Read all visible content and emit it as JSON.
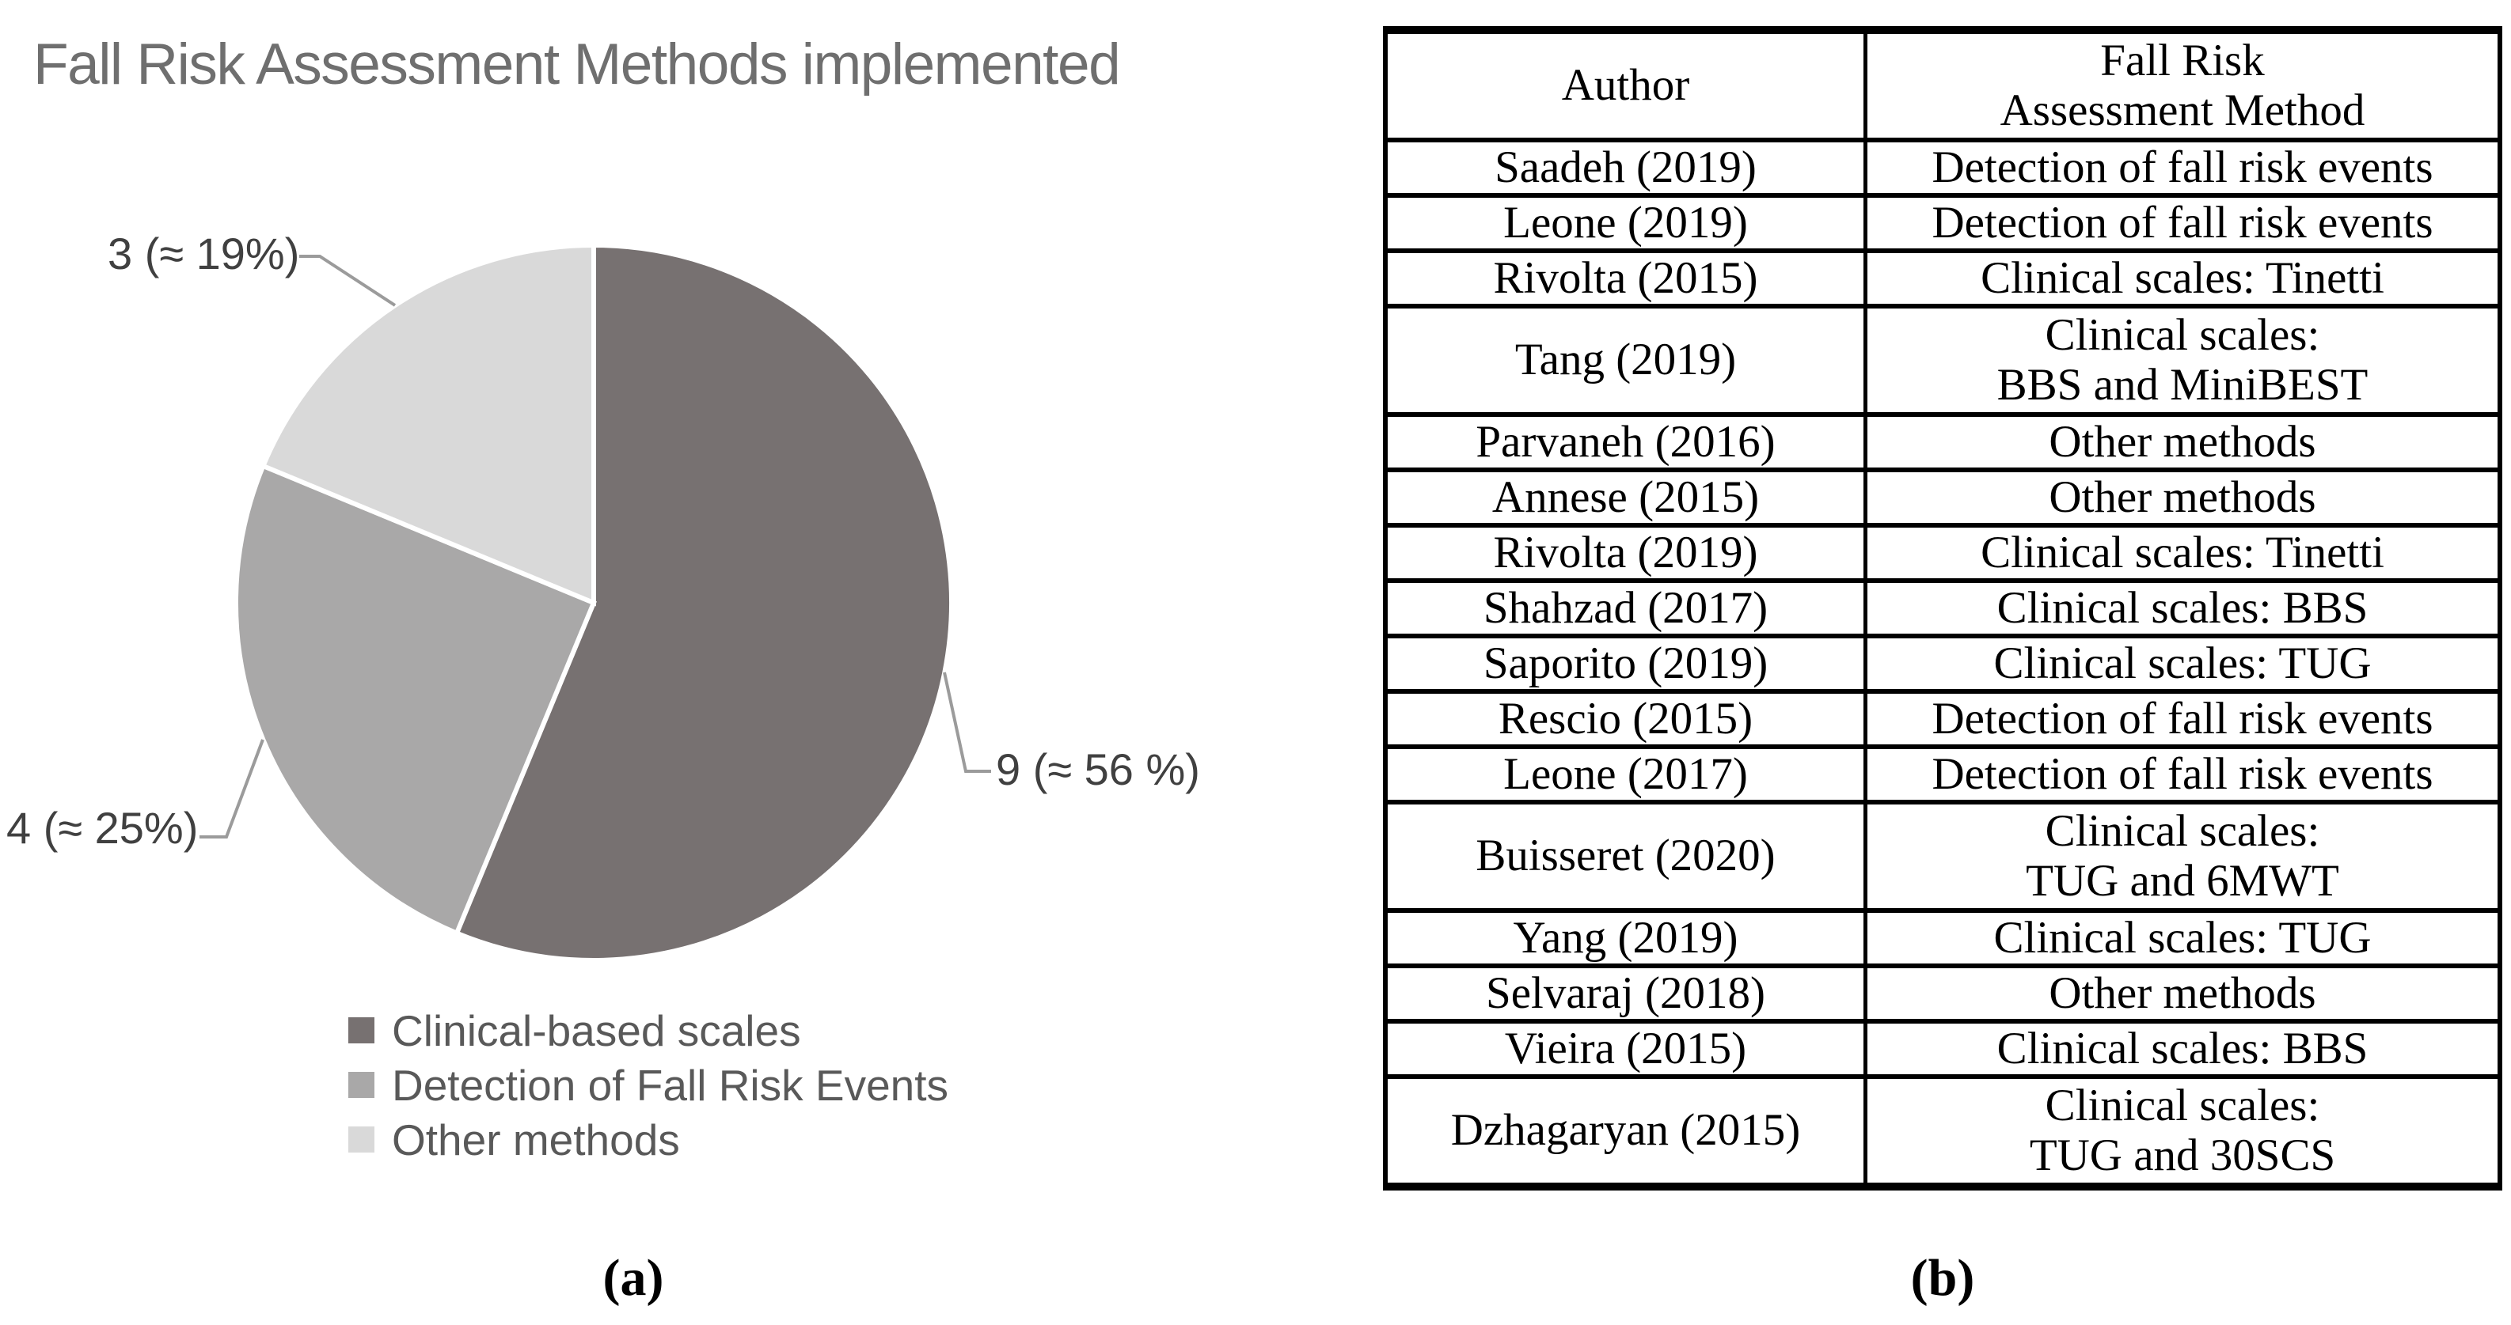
{
  "chart_data": {
    "type": "pie",
    "title": "Fall Risk Assessment Methods implemented",
    "total": 16,
    "legend_position": "bottom",
    "slices": [
      {
        "label": "Clinical-based scales",
        "value": 9,
        "percent": 56,
        "callout": "9 (≈ 56 %)",
        "color": "#777171"
      },
      {
        "label": "Detection of Fall Risk Events",
        "value": 4,
        "percent": 25,
        "callout": "4 (≈ 25%)",
        "color": "#a9a8a8"
      },
      {
        "label": "Other methods",
        "value": 3,
        "percent": 19,
        "callout": "3 (≈ 19%)",
        "color": "#d9d9d9"
      }
    ]
  },
  "table": {
    "headers": {
      "author": "Author",
      "method_line1": "Fall Risk",
      "method_line2": "Assessment Method"
    },
    "rows": [
      {
        "author": "Saadeh (2019)",
        "method_lines": [
          "Detection of fall risk events"
        ]
      },
      {
        "author": "Leone (2019)",
        "method_lines": [
          "Detection of fall risk events"
        ]
      },
      {
        "author": "Rivolta (2015)",
        "method_lines": [
          "Clinical scales: Tinetti"
        ]
      },
      {
        "author": "Tang (2019)",
        "method_lines": [
          "Clinical scales:",
          "BBS and MiniBEST"
        ]
      },
      {
        "author": "Parvaneh (2016)",
        "method_lines": [
          "Other methods"
        ]
      },
      {
        "author": "Annese (2015)",
        "method_lines": [
          "Other methods"
        ]
      },
      {
        "author": "Rivolta (2019)",
        "method_lines": [
          "Clinical scales: Tinetti"
        ]
      },
      {
        "author": "Shahzad (2017)",
        "method_lines": [
          "Clinical scales: BBS"
        ]
      },
      {
        "author": "Saporito (2019)",
        "method_lines": [
          "Clinical scales: TUG"
        ]
      },
      {
        "author": "Rescio (2015)",
        "method_lines": [
          "Detection of fall risk events"
        ]
      },
      {
        "author": "Leone (2017)",
        "method_lines": [
          "Detection of fall risk events"
        ]
      },
      {
        "author": "Buisseret (2020)",
        "method_lines": [
          "Clinical scales:",
          "TUG and 6MWT"
        ]
      },
      {
        "author": "Yang (2019)",
        "method_lines": [
          "Clinical scales: TUG"
        ]
      },
      {
        "author": "Selvaraj (2018)",
        "method_lines": [
          "Other methods"
        ]
      },
      {
        "author": "Vieira (2015)",
        "method_lines": [
          "Clinical scales: BBS"
        ]
      },
      {
        "author": "Dzhagaryan (2015)",
        "method_lines": [
          "Clinical scales:",
          "TUG and 30SCS"
        ]
      }
    ]
  },
  "captions": {
    "a": "(a)",
    "b": "(b)"
  },
  "colors": {
    "leader_line": "#9b9b9b",
    "title_text": "#6f6f6f",
    "legend_text": "#595959",
    "callout_text": "#404040"
  }
}
